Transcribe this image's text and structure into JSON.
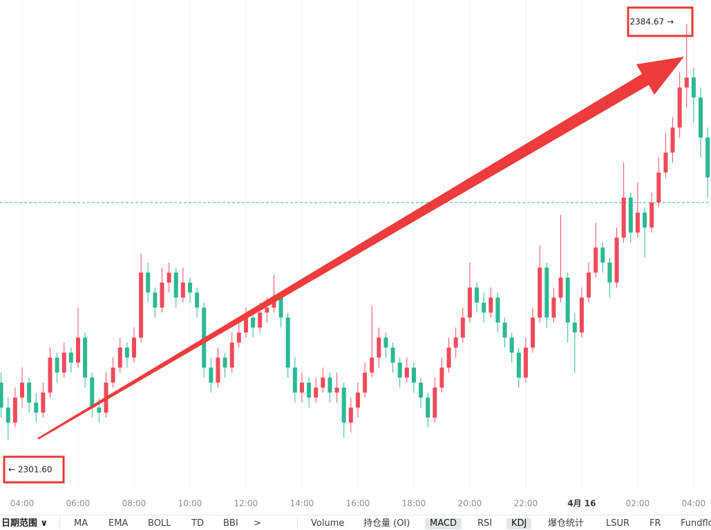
{
  "chart_data": {
    "type": "candlestick",
    "up_color": "#ef4a5c",
    "down_color": "#2bb993",
    "grid": true,
    "xlim": [
      3.21,
      28.62
    ],
    "ylim": [
      2291.4,
      2389.5
    ],
    "xticks": [
      {
        "value": 4,
        "label": "04:00"
      },
      {
        "value": 6,
        "label": "06:00"
      },
      {
        "value": 8,
        "label": "08:00"
      },
      {
        "value": 10,
        "label": "10:00"
      },
      {
        "value": 12,
        "label": "12:00"
      },
      {
        "value": 14,
        "label": "14:00"
      },
      {
        "value": 16,
        "label": "16:00"
      },
      {
        "value": 18,
        "label": "18:00"
      },
      {
        "value": 20,
        "label": "20:00"
      },
      {
        "value": 22,
        "label": "22:00"
      },
      {
        "value": 24,
        "label": "4月 16",
        "bold": true
      },
      {
        "value": 26,
        "label": "02:00"
      },
      {
        "value": 28,
        "label": "04:00"
      }
    ],
    "reference_line": 2349,
    "annotations": [
      {
        "value": 2384.67,
        "label": "2384.67 →"
      },
      {
        "value": 2301.6,
        "label": "← 2301.60"
      }
    ],
    "x": [
      3.25,
      3.5,
      3.75,
      4,
      4.25,
      4.5,
      4.75,
      5,
      5.25,
      5.5,
      5.75,
      6,
      6.25,
      6.5,
      6.75,
      7,
      7.25,
      7.5,
      7.75,
      8,
      8.25,
      8.5,
      8.75,
      9,
      9.25,
      9.5,
      9.75,
      10,
      10.25,
      10.5,
      10.75,
      11,
      11.25,
      11.5,
      11.75,
      12,
      12.25,
      12.5,
      12.75,
      13,
      13.25,
      13.5,
      13.75,
      14,
      14.25,
      14.5,
      14.75,
      15,
      15.25,
      15.5,
      15.75,
      16,
      16.25,
      16.5,
      16.75,
      17,
      17.25,
      17.5,
      17.75,
      18,
      18.25,
      18.5,
      18.75,
      19,
      19.25,
      19.5,
      19.75,
      20,
      20.25,
      20.5,
      20.75,
      21,
      21.25,
      21.5,
      21.75,
      22,
      22.25,
      22.5,
      22.75,
      23,
      23.25,
      23.5,
      23.75,
      24,
      24.25,
      24.5,
      24.75,
      25,
      25.25,
      25.5,
      25.75,
      26,
      26.25,
      26.5,
      26.75,
      27,
      27.25,
      27.5,
      27.75,
      28,
      28.25,
      28.5
    ],
    "open": [
      2313,
      2308,
      2305,
      2310,
      2313,
      2309,
      2307,
      2311,
      2318,
      2315,
      2319,
      2317,
      2322,
      2314,
      2308,
      2307,
      2313,
      2316,
      2320,
      2318,
      2322,
      2335,
      2331,
      2328,
      2333,
      2335,
      2330,
      2333,
      2331,
      2328,
      2316,
      2313,
      2318,
      2316,
      2321,
      2323,
      2326,
      2324,
      2327,
      2328,
      2330,
      2326,
      2316,
      2311,
      2313,
      2310,
      2312,
      2314,
      2311,
      2312,
      2305,
      2308,
      2311,
      2315,
      2318,
      2322,
      2320,
      2317,
      2314,
      2316,
      2313,
      2310,
      2306,
      2312,
      2316,
      2320,
      2322,
      2326,
      2332,
      2329,
      2327,
      2330,
      2325,
      2322,
      2319,
      2314,
      2320,
      2326,
      2336,
      2326,
      2330,
      2334,
      2325,
      2323,
      2330,
      2335,
      2340,
      2337,
      2333,
      2342,
      2350,
      2343,
      2347,
      2344,
      2349,
      2355,
      2359,
      2364,
      2372,
      2374,
      2370,
      2362
    ],
    "high": [
      2315,
      2310,
      2312,
      2316,
      2314,
      2311,
      2313,
      2320,
      2319,
      2321,
      2320,
      2328,
      2323,
      2315,
      2310,
      2315,
      2318,
      2322,
      2321,
      2324,
      2338.8,
      2337,
      2332,
      2336,
      2337,
      2336,
      2336,
      2334,
      2332,
      2329,
      2318,
      2320,
      2319,
      2323,
      2325,
      2328,
      2327,
      2329,
      2330,
      2334.5,
      2331,
      2327,
      2318,
      2315,
      2314,
      2314,
      2316,
      2315,
      2315,
      2313,
      2310,
      2313,
      2317,
      2328.5,
      2324,
      2323,
      2321,
      2318,
      2318,
      2317,
      2314,
      2311,
      2314,
      2318,
      2322,
      2324,
      2328,
      2337,
      2333,
      2331,
      2332,
      2331,
      2326,
      2323,
      2320,
      2322,
      2328,
      2340.5,
      2337,
      2332,
      2346.5,
      2335,
      2327,
      2332,
      2337,
      2345,
      2341,
      2338,
      2344,
      2357,
      2351,
      2353,
      2348,
      2351,
      2358,
      2363,
      2366,
      2375,
      2384.67,
      2376,
      2372,
      2364
    ],
    "low": [
      2306,
      2301.6,
      2304,
      2308,
      2307,
      2305,
      2306,
      2310,
      2313,
      2314,
      2315,
      2316,
      2312,
      2306,
      2305,
      2306,
      2312,
      2315,
      2316,
      2317,
      2321,
      2329,
      2326,
      2327,
      2331,
      2328,
      2329,
      2329,
      2326,
      2314,
      2311,
      2312,
      2314,
      2315,
      2320,
      2322,
      2322,
      2323,
      2325,
      2327,
      2324,
      2314,
      2309,
      2309,
      2308,
      2309,
      2311,
      2309,
      2309,
      2302,
      2303,
      2306,
      2310,
      2314,
      2316,
      2318,
      2315,
      2312,
      2313,
      2311,
      2308,
      2304,
      2305,
      2311,
      2315,
      2318,
      2321,
      2325,
      2327,
      2325,
      2326,
      2323,
      2320,
      2317,
      2312,
      2313,
      2319,
      2325,
      2324,
      2325,
      2329,
      2321,
      2315,
      2322,
      2329,
      2334,
      2335,
      2330,
      2332,
      2341,
      2341,
      2342,
      2338,
      2343,
      2348,
      2354,
      2357,
      2362,
      2368,
      2365,
      2358,
      2350
    ],
    "close": [
      2308,
      2305,
      2310,
      2313,
      2309,
      2307,
      2311,
      2318,
      2315,
      2319,
      2317,
      2322,
      2314,
      2308,
      2307,
      2313,
      2316,
      2320,
      2318,
      2322,
      2335,
      2331,
      2328,
      2333,
      2335,
      2330,
      2333,
      2331,
      2328,
      2316,
      2313,
      2318,
      2316,
      2321,
      2323,
      2326,
      2324,
      2327,
      2328,
      2330,
      2326,
      2316,
      2311,
      2313,
      2310,
      2312,
      2314,
      2311,
      2312,
      2305,
      2308,
      2311,
      2315,
      2318,
      2322,
      2320,
      2317,
      2314,
      2316,
      2313,
      2310,
      2306,
      2312,
      2316,
      2320,
      2322,
      2326,
      2332,
      2329,
      2327,
      2330,
      2325,
      2322,
      2319,
      2314,
      2320,
      2326,
      2336,
      2326,
      2330,
      2334,
      2325,
      2323,
      2330,
      2335,
      2340,
      2337,
      2333,
      2342,
      2350,
      2343,
      2347,
      2344,
      2349,
      2355,
      2359,
      2364,
      2372,
      2374,
      2370,
      2362,
      2354
    ]
  },
  "toolbar": {
    "date_range": "日期范围",
    "main_indicators": [
      {
        "label": "MA",
        "active": false
      },
      {
        "label": "EMA",
        "active": false
      },
      {
        "label": "BOLL",
        "active": false
      },
      {
        "label": "TD",
        "active": false
      },
      {
        "label": "BBI",
        "active": false
      }
    ],
    "more": ">",
    "sub_indicators": [
      {
        "label": "Volume",
        "active": false
      },
      {
        "label": "持仓量 (OI)",
        "active": false
      },
      {
        "label": "MACD",
        "active": true
      },
      {
        "label": "RSI",
        "active": false
      },
      {
        "label": "KDJ",
        "active": true
      },
      {
        "label": "爆仓统计",
        "active": false
      },
      {
        "label": "LSUR",
        "active": false
      },
      {
        "label": "FR",
        "active": false
      },
      {
        "label": "Fundflow",
        "active": false
      }
    ]
  }
}
